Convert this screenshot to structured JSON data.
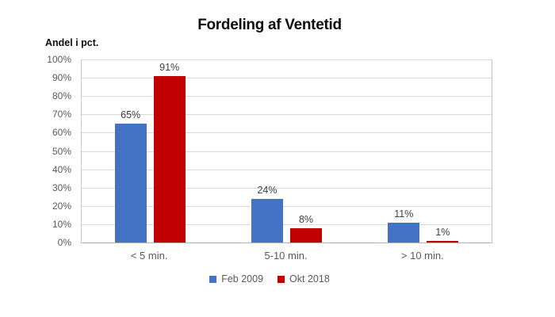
{
  "chart_data": {
    "type": "bar",
    "title": "Fordeling af Ventetid",
    "axis_title": "Andel i pct.",
    "categories": [
      "< 5 min.",
      "5-10 min.",
      "> 10 min."
    ],
    "series": [
      {
        "name": "Feb 2009",
        "color": "#4472C4",
        "values": [
          65,
          24,
          11
        ]
      },
      {
        "name": "Okt 2018",
        "color": "#C00000",
        "values": [
          91,
          8,
          1
        ]
      }
    ],
    "value_label_suffix": "%",
    "y_ticks": [
      "0%",
      "10%",
      "20%",
      "30%",
      "40%",
      "50%",
      "60%",
      "70%",
      "80%",
      "90%",
      "100%"
    ],
    "ylim": [
      0,
      100
    ],
    "grid": "horizontal",
    "legend_position": "bottom",
    "colors": {
      "background": "#ffffff",
      "gridline": "#d9d9d9",
      "plot_border": "#c6c6c6",
      "axis_line": "#b3b3b3",
      "tick_text": "#595959",
      "data_label_text": "#404040",
      "title_text": "#0d0d0d"
    }
  }
}
